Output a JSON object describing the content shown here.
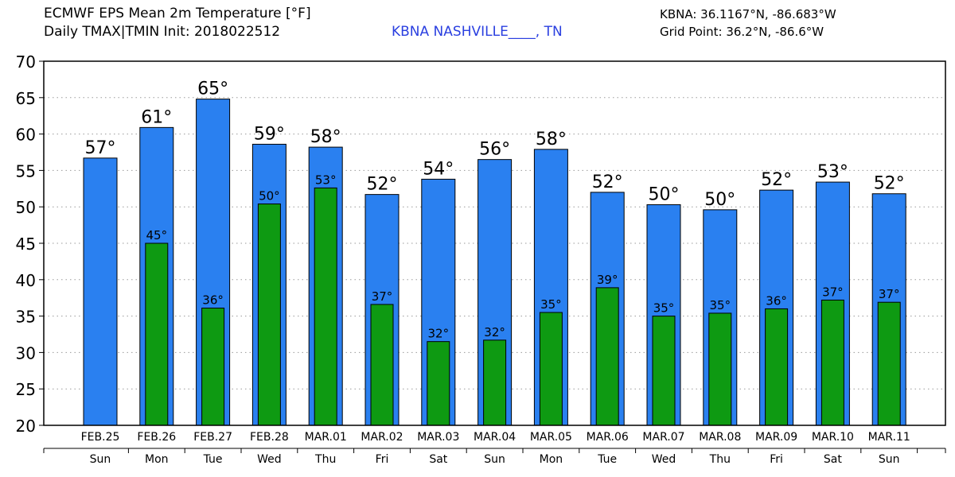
{
  "header": {
    "title_line1": "ECMWF EPS Mean 2m Temperature [°F]",
    "title_line2": "Daily TMAX|TMIN Init: 2018022512",
    "station": "KBNA NASHVILLE____, TN",
    "station_color": "#2a3fe0",
    "coords": "KBNA: 36.1167°N, -86.683°W",
    "grid_point": "Grid Point: 36.2°N, -86.6°W"
  },
  "chart_data": {
    "type": "bar",
    "title": "ECMWF EPS Mean 2m Temperature [°F]",
    "categories": [
      "FEB.25",
      "FEB.26",
      "FEB.27",
      "FEB.28",
      "MAR.01",
      "MAR.02",
      "MAR.03",
      "MAR.04",
      "MAR.05",
      "MAR.06",
      "MAR.07",
      "MAR.08",
      "MAR.09",
      "MAR.10",
      "MAR.11"
    ],
    "weekdays": [
      "Sun",
      "Mon",
      "Tue",
      "Wed",
      "Thu",
      "Fri",
      "Sat",
      "Sun",
      "Mon",
      "Tue",
      "Wed",
      "Thu",
      "Fri",
      "Sat",
      "Sun"
    ],
    "series": [
      {
        "name": "TMAX",
        "color": "#2a80f0",
        "values": [
          56.7,
          60.9,
          64.8,
          58.6,
          58.2,
          51.7,
          53.8,
          56.5,
          57.9,
          52.0,
          50.3,
          49.6,
          52.3,
          53.4,
          51.8
        ],
        "labels": [
          "57°",
          "61°",
          "65°",
          "59°",
          "58°",
          "52°",
          "54°",
          "56°",
          "58°",
          "52°",
          "50°",
          "50°",
          "52°",
          "53°",
          "52°"
        ]
      },
      {
        "name": "TMIN",
        "color": "#0e9a12",
        "values": [
          null,
          45.0,
          36.1,
          50.4,
          52.6,
          36.6,
          31.5,
          31.7,
          35.5,
          38.9,
          35.0,
          35.4,
          36.0,
          37.2,
          36.9
        ],
        "labels": [
          "",
          "45°",
          "36°",
          "50°",
          "53°",
          "37°",
          "32°",
          "32°",
          "35°",
          "39°",
          "35°",
          "35°",
          "36°",
          "37°",
          "37°"
        ]
      }
    ],
    "yticks": [
      "20",
      "25",
      "30",
      "35",
      "40",
      "45",
      "50",
      "55",
      "60",
      "65",
      "70"
    ],
    "ylim": [
      20,
      70
    ],
    "grid": true
  }
}
